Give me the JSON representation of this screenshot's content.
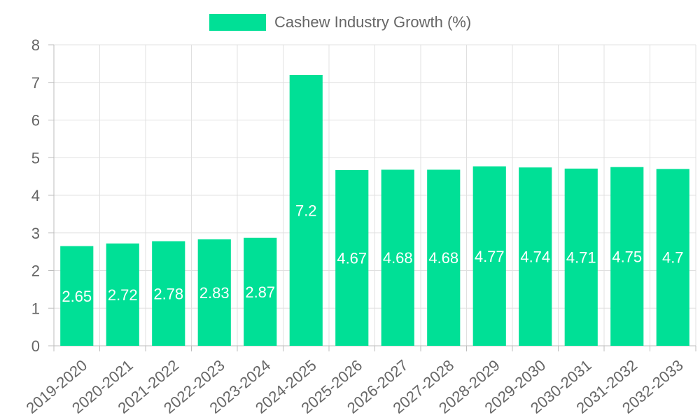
{
  "chart_data": {
    "type": "bar",
    "title": "",
    "xlabel": "",
    "ylabel": "",
    "ylim": [
      0,
      8
    ],
    "y_ticks": [
      "0",
      "1",
      "2",
      "3",
      "4",
      "5",
      "6",
      "7",
      "8"
    ],
    "grid": true,
    "legend_position": "top-center",
    "categories": [
      "2019-2020",
      "2020-2021",
      "2021-2022",
      "2022-2023",
      "2023-2024",
      "2024-2025",
      "2025-2026",
      "2026-2027",
      "2027-2028",
      "2028-2029",
      "2029-2030",
      "2030-2031",
      "2031-2032",
      "2032-2033"
    ],
    "series": [
      {
        "name": "Cashew Industry Growth (%)",
        "color": "#00e096",
        "values": [
          2.65,
          2.72,
          2.78,
          2.83,
          2.87,
          7.2,
          4.67,
          4.68,
          4.68,
          4.77,
          4.74,
          4.71,
          4.75,
          4.7
        ],
        "labels": [
          "2.65",
          "2.72",
          "2.78",
          "2.83",
          "2.87",
          "7.2",
          "4.67",
          "4.68",
          "4.68",
          "4.77",
          "4.74",
          "4.71",
          "4.75",
          "4.7"
        ]
      }
    ]
  }
}
